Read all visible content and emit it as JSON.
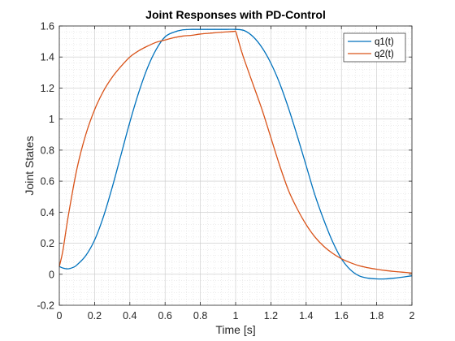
{
  "chart_data": {
    "type": "line",
    "title": "Joint Responses with PD-Control",
    "xlabel": "Time [s]",
    "ylabel": "Joint States",
    "xlim": [
      0,
      2
    ],
    "ylim": [
      -0.2,
      1.6
    ],
    "xticks": [
      0,
      0.2,
      0.4,
      0.6,
      0.8,
      1,
      1.2,
      1.4,
      1.6,
      1.8,
      2
    ],
    "xtick_labels": [
      "0",
      "0.2",
      "0.4",
      "0.6",
      "0.8",
      "1",
      "1.2",
      "1.4",
      "1.6",
      "1.8",
      "2"
    ],
    "yticks": [
      -0.2,
      0,
      0.2,
      0.4,
      0.6,
      0.8,
      1,
      1.2,
      1.4,
      1.6
    ],
    "ytick_labels": [
      "-0.2",
      "0",
      "0.2",
      "0.4",
      "0.6",
      "0.8",
      "1",
      "1.2",
      "1.4",
      "1.6"
    ],
    "grid": "on",
    "minor_grid": "on",
    "legend_position": "top-right",
    "series": [
      {
        "name": "q1(t)",
        "color": "#0072BD",
        "x": [
          0,
          0.02,
          0.05,
          0.08,
          0.1,
          0.15,
          0.2,
          0.25,
          0.3,
          0.35,
          0.4,
          0.45,
          0.5,
          0.55,
          0.6,
          0.65,
          0.7,
          0.75,
          0.8,
          0.85,
          0.9,
          0.95,
          1.0,
          1.05,
          1.1,
          1.15,
          1.2,
          1.25,
          1.3,
          1.35,
          1.4,
          1.45,
          1.5,
          1.55,
          1.6,
          1.65,
          1.7,
          1.75,
          1.8,
          1.85,
          1.9,
          1.95,
          2.0
        ],
        "y": [
          0.05,
          0.04,
          0.035,
          0.045,
          0.06,
          0.12,
          0.22,
          0.37,
          0.56,
          0.77,
          0.98,
          1.17,
          1.33,
          1.45,
          1.53,
          1.56,
          1.575,
          1.578,
          1.578,
          1.578,
          1.578,
          1.578,
          1.578,
          1.57,
          1.53,
          1.46,
          1.36,
          1.23,
          1.07,
          0.89,
          0.7,
          0.51,
          0.35,
          0.21,
          0.1,
          0.03,
          -0.01,
          -0.025,
          -0.03,
          -0.03,
          -0.025,
          -0.018,
          -0.01
        ]
      },
      {
        "name": "q2(t)",
        "color": "#D95319",
        "x": [
          0,
          0.02,
          0.05,
          0.1,
          0.15,
          0.2,
          0.25,
          0.3,
          0.35,
          0.4,
          0.45,
          0.5,
          0.55,
          0.6,
          0.65,
          0.7,
          0.75,
          0.8,
          0.85,
          0.9,
          0.95,
          0.99,
          1.0,
          1.01,
          1.03,
          1.05,
          1.1,
          1.15,
          1.2,
          1.25,
          1.3,
          1.35,
          1.4,
          1.45,
          1.5,
          1.55,
          1.6,
          1.65,
          1.7,
          1.75,
          1.8,
          1.85,
          1.9,
          1.95,
          2.0
        ],
        "y": [
          0.05,
          0.15,
          0.37,
          0.68,
          0.9,
          1.06,
          1.18,
          1.27,
          1.34,
          1.4,
          1.44,
          1.47,
          1.495,
          1.51,
          1.525,
          1.535,
          1.54,
          1.548,
          1.553,
          1.558,
          1.562,
          1.565,
          1.565,
          1.53,
          1.45,
          1.38,
          1.22,
          1.06,
          0.88,
          0.7,
          0.54,
          0.42,
          0.32,
          0.24,
          0.18,
          0.135,
          0.1,
          0.075,
          0.055,
          0.042,
          0.032,
          0.024,
          0.018,
          0.013,
          0.008
        ]
      }
    ]
  }
}
